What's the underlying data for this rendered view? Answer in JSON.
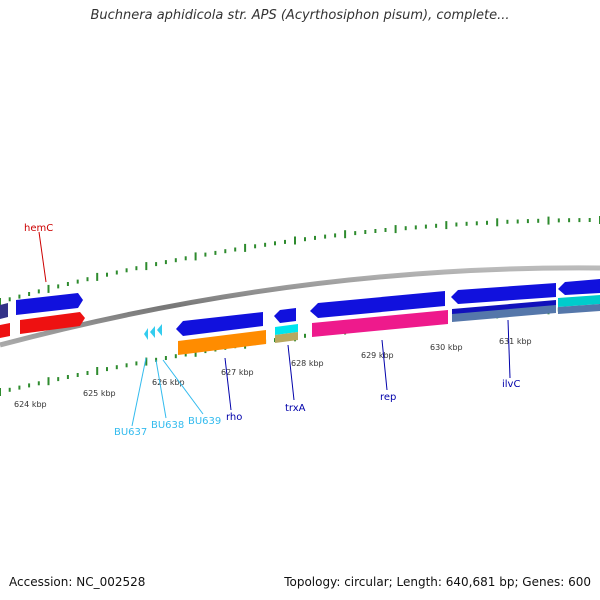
{
  "title": "Buchnera aphidicola str. APS (Acyrthosiphon pisum), complete...",
  "footer": {
    "accession_label": "Accession:",
    "accession": "NC_002528",
    "topology_label": "Topology:",
    "topology": "circular",
    "length_label": "Length:",
    "length": "640,681 bp",
    "genes_label": "Genes:",
    "genes": "600"
  },
  "ticks": [
    {
      "label": "624 kbp",
      "bp": 624000
    },
    {
      "label": "625 kbp",
      "bp": 625000
    },
    {
      "label": "626 kbp",
      "bp": 626000
    },
    {
      "label": "627 kbp",
      "bp": 627000
    },
    {
      "label": "628 kbp",
      "bp": 628000
    },
    {
      "label": "629 kbp",
      "bp": 629000
    },
    {
      "label": "630 kbp",
      "bp": 630000
    },
    {
      "label": "631 kbp",
      "bp": 631000
    }
  ],
  "genes": [
    {
      "name": "hemC",
      "color": "#cc0000"
    },
    {
      "name": "BU637",
      "color": "#33bbee"
    },
    {
      "name": "BU638",
      "color": "#33bbee"
    },
    {
      "name": "BU639",
      "color": "#33bbee"
    },
    {
      "name": "rho",
      "color": "#0000aa"
    },
    {
      "name": "trxA",
      "color": "#0000aa"
    },
    {
      "name": "rep",
      "color": "#0000aa"
    },
    {
      "name": "ilvC",
      "color": "#0000aa"
    }
  ],
  "colors": {
    "backbone": "#888888",
    "tick": "#2e8b2e",
    "cds_blue": "#1111dd",
    "cds_red": "#ee1111",
    "cds_orange": "#ff8c00",
    "cds_pink": "#ee1a8c",
    "cds_cyan": "#00e5ee",
    "cds_tan": "#b8a860",
    "cds_steel": "#5577aa"
  }
}
